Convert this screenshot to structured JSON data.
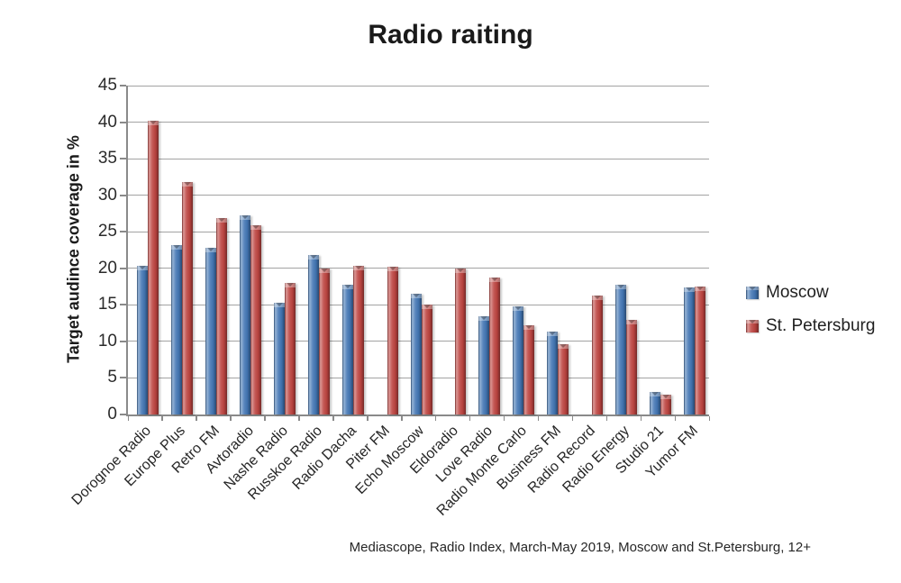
{
  "title": "Radio raiting",
  "y_axis_title": "Target audince coverage in %",
  "footer": "Mediascope, Radio Index, March-May 2019, Moscow and St.Petersburg, 12+",
  "chart_data": {
    "type": "bar",
    "title": "Radio raiting",
    "xlabel": "",
    "ylabel": "Target audince coverage in %",
    "ylim": [
      0,
      45
    ],
    "ytick_step": 5,
    "grid": true,
    "legend_position": "right",
    "categories": [
      "Dorognoe Radio",
      "Europe Plus",
      "Retro FM",
      "Avtoradio",
      "Nashe Radio",
      "Russkoe Radio",
      "Radio Dacha",
      "Piter FM",
      "Echo Moscow",
      "Eldoradio",
      "Love Radio",
      "Radio Monte Carlo",
      "Business FM",
      "Radio Record",
      "Radio Energy",
      "Studio 21",
      "Yumor FM"
    ],
    "series": [
      {
        "name": "Moscow",
        "color": "#4276b4",
        "values": [
          20.4,
          23.2,
          22.8,
          27.3,
          15.3,
          21.8,
          17.8,
          0,
          16.5,
          0,
          13.4,
          14.8,
          11.4,
          0,
          17.8,
          3.1,
          17.4
        ]
      },
      {
        "name": "St. Petersburg",
        "color": "#bd4440",
        "values": [
          40.2,
          31.8,
          26.9,
          25.9,
          18.0,
          20.0,
          20.3,
          20.2,
          15.1,
          20.0,
          18.8,
          12.2,
          9.6,
          16.3,
          12.9,
          2.7,
          17.5
        ]
      }
    ]
  },
  "colors": {
    "gridline": "#a3a3a3",
    "axis": "#8a8a8a",
    "text": "#262626",
    "moscow_bar": "#4276b4",
    "st_petersburg_bar": "#bd4440"
  }
}
